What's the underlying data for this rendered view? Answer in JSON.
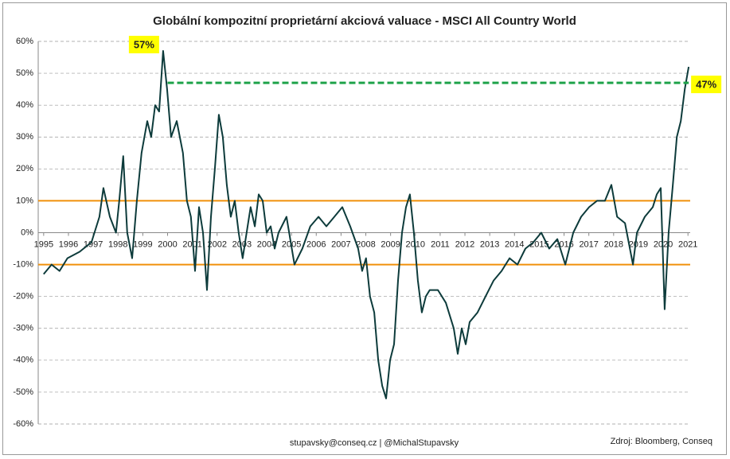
{
  "chart_data": {
    "type": "line",
    "title": "Globální kompozitní proprietární akciová valuace - MSCI All Country World",
    "footer": "stupavsky@conseq.cz  |  @MichalStupavsky",
    "source": "Zdroj: Bloomberg, Conseq",
    "color": "#0d3b3b",
    "x": [
      1995.0,
      1995.32,
      1995.64,
      1995.96,
      1996.45,
      1996.93,
      1997.25,
      1997.41,
      1997.67,
      1997.92,
      1998.05,
      1998.21,
      1998.37,
      1998.57,
      1998.76,
      1998.95,
      1999.18,
      1999.34,
      1999.5,
      1999.66,
      1999.82,
      1999.98,
      2000.14,
      2000.37,
      2000.62,
      2000.78,
      2000.94,
      2001.11,
      2001.27,
      2001.43,
      2001.59,
      2001.75,
      2001.91,
      2002.07,
      2002.23,
      2002.39,
      2002.55,
      2002.71,
      2002.87,
      2003.03,
      2003.19,
      2003.35,
      2003.52,
      2003.68,
      2003.84,
      2004.0,
      2004.16,
      2004.32,
      2004.48,
      2004.8,
      2005.12,
      2005.44,
      2005.76,
      2006.09,
      2006.41,
      2006.73,
      2007.05,
      2007.37,
      2007.69,
      2007.85,
      2008.01,
      2008.17,
      2008.34,
      2008.5,
      2008.66,
      2008.82,
      2008.98,
      2009.14,
      2009.3,
      2009.46,
      2009.62,
      2009.78,
      2009.94,
      2010.1,
      2010.26,
      2010.42,
      2010.58,
      2010.91,
      2011.23,
      2011.55,
      2011.71,
      2011.87,
      2012.03,
      2012.19,
      2012.51,
      2012.83,
      2013.16,
      2013.48,
      2013.8,
      2014.12,
      2014.44,
      2014.76,
      2015.08,
      2015.4,
      2015.73,
      2016.05,
      2016.37,
      2016.69,
      2017.01,
      2017.33,
      2017.65,
      2017.91,
      2018.14,
      2018.46,
      2018.78,
      2018.94,
      2019.26,
      2019.58,
      2019.74,
      2019.9,
      2020.06,
      2020.22,
      2020.39,
      2020.55,
      2020.71,
      2020.87,
      2021.03
    ],
    "values": [
      -13,
      -10,
      -12,
      -8,
      -6,
      -3,
      5,
      14,
      5,
      0,
      10,
      24,
      0,
      -8,
      10,
      25,
      35,
      30,
      40,
      38,
      57,
      45,
      30,
      35,
      25,
      10,
      5,
      -12,
      8,
      0,
      -18,
      5,
      20,
      37,
      30,
      15,
      5,
      10,
      0,
      -8,
      0,
      8,
      2,
      12,
      10,
      0,
      2,
      -5,
      0,
      5,
      -10,
      -5,
      2,
      5,
      2,
      5,
      8,
      2,
      -5,
      -12,
      -8,
      -20,
      -25,
      -40,
      -48,
      -52,
      -40,
      -35,
      -15,
      0,
      8,
      12,
      0,
      -15,
      -25,
      -20,
      -18,
      -18,
      -22,
      -30,
      -38,
      -30,
      -35,
      -28,
      -25,
      -20,
      -15,
      -12,
      -8,
      -10,
      -5,
      -3,
      0,
      -5,
      -2,
      -10,
      0,
      5,
      8,
      10,
      10,
      15,
      5,
      3,
      -10,
      0,
      5,
      8,
      12,
      14,
      -24,
      0,
      15,
      30,
      35,
      45,
      52
    ],
    "xlim": [
      1994.78,
      2021.09
    ],
    "xticks": [
      1995,
      1996,
      1997,
      1998,
      1999,
      2000,
      2001,
      2002,
      2003,
      2004,
      2005,
      2006,
      2007,
      2008,
      2009,
      2010,
      2011,
      2012,
      2013,
      2014,
      2015,
      2016,
      2017,
      2018,
      2019,
      2020,
      2021
    ],
    "ylim": [
      -60,
      60
    ],
    "yticks": [
      {
        "value": -60,
        "label": "-60%"
      },
      {
        "value": -50,
        "label": "-50%"
      },
      {
        "value": -40,
        "label": "-40%"
      },
      {
        "value": -30,
        "label": "-30%"
      },
      {
        "value": -20,
        "label": "-20%"
      },
      {
        "value": -10,
        "label": "-10%"
      },
      {
        "value": 0,
        "label": "0%"
      },
      {
        "value": 10,
        "label": "10%"
      },
      {
        "value": 20,
        "label": "20%"
      },
      {
        "value": 30,
        "label": "30%"
      },
      {
        "value": 40,
        "label": "40%"
      },
      {
        "value": 50,
        "label": "50%"
      },
      {
        "value": 60,
        "label": "60%"
      }
    ],
    "grid": true,
    "hlines": [
      {
        "value": 10,
        "color": "#f0900a"
      },
      {
        "value": -10,
        "color": "#f0900a"
      }
    ],
    "reference_line": {
      "value": 47,
      "x": [
        2000.0,
        2021.03
      ],
      "color": "#1fa34a"
    },
    "annotations": [
      {
        "text": "57%",
        "value": 57,
        "x": 1999.82
      },
      {
        "text": "47%",
        "value": 47,
        "x": 2021.03
      }
    ]
  }
}
